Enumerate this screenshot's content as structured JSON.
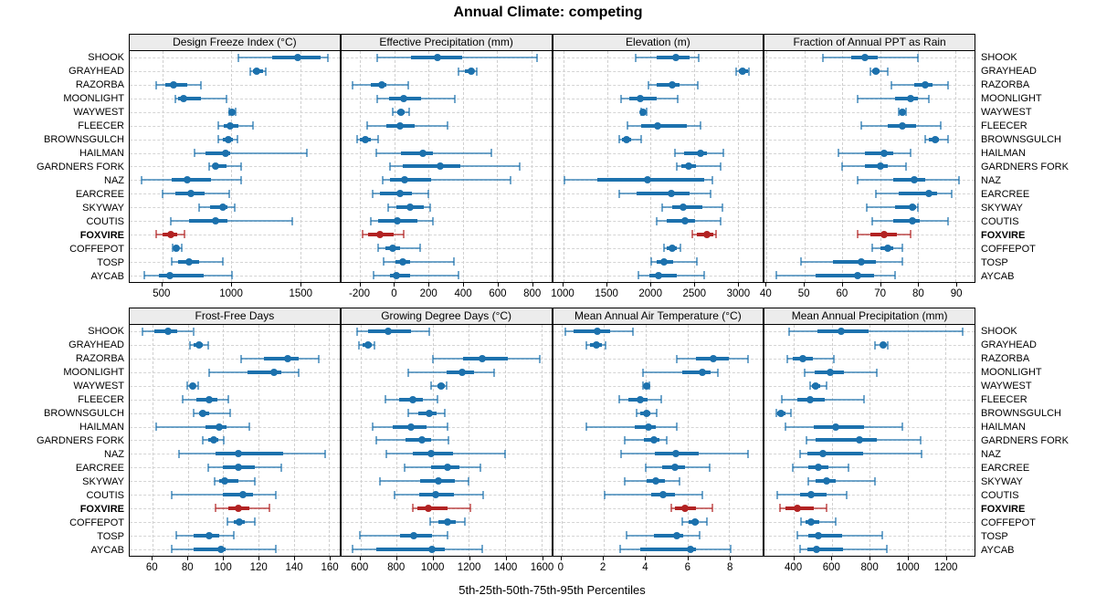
{
  "title": "Annual Climate: competing",
  "xlabel": "5th-25th-50th-75th-95th Percentiles",
  "colors": {
    "series": "#1c71ad",
    "highlight": "#b22222",
    "strip_bg": "#ececec",
    "grid": "#cfcfcf",
    "panel_border": "#000000"
  },
  "chart_data": {
    "type": "dotplot",
    "subtype": "percentile-range-trellis",
    "percentile_labels": [
      "5th",
      "25th",
      "50th",
      "75th",
      "95th"
    ],
    "legend_position": "none",
    "grid": "dashed",
    "highlight_site": "FOXVIRE",
    "sites": [
      "SHOOK",
      "GRAYHEAD",
      "RAZORBA",
      "MOONLIGHT",
      "WAYWEST",
      "FLEECER",
      "BROWNSGULCH",
      "HAILMAN",
      "GARDNERS FORK",
      "NAZ",
      "EARCREE",
      "SKYWAY",
      "COUTIS",
      "FOXVIRE",
      "COFFEPOT",
      "TOSP",
      "AYCAB"
    ],
    "layout": {
      "rows": 2,
      "cols": 4
    },
    "panels": [
      {
        "title": "Design Freeze Index (°C)",
        "row": 0,
        "col": 0,
        "xlim": [
          265,
          1785
        ],
        "ticks": [
          500,
          1000,
          1500
        ],
        "values": {
          "SHOOK": [
            1050,
            1300,
            1480,
            1650,
            1700
          ],
          "GRAYHEAD": [
            1140,
            1160,
            1185,
            1230,
            1250
          ],
          "RAZORBA": [
            460,
            525,
            585,
            680,
            780
          ],
          "MOONLIGHT": [
            595,
            615,
            655,
            780,
            965
          ],
          "WAYWEST": [
            985,
            995,
            1005,
            1025,
            1035
          ],
          "FLEECER": [
            905,
            945,
            995,
            1055,
            1155
          ],
          "BROWNSGULCH": [
            905,
            940,
            980,
            1015,
            1045
          ],
          "HAILMAN": [
            735,
            815,
            960,
            995,
            1550
          ],
          "GARDNERS FORK": [
            840,
            865,
            890,
            965,
            1070
          ],
          "NAZ": [
            350,
            570,
            680,
            855,
            1070
          ],
          "EARCREE": [
            500,
            595,
            710,
            810,
            985
          ],
          "SKYWAY": [
            765,
            845,
            940,
            970,
            1025
          ],
          "COUTIS": [
            560,
            695,
            890,
            975,
            1440
          ],
          "FOXVIRE": [
            460,
            500,
            560,
            610,
            665
          ],
          "COFFEPOT": [
            575,
            585,
            600,
            620,
            640
          ],
          "TOSP": [
            570,
            615,
            695,
            770,
            940
          ],
          "AYCAB": [
            370,
            480,
            555,
            800,
            1005
          ]
        }
      },
      {
        "title": "Effective Precipitation (mm)",
        "row": 0,
        "col": 1,
        "xlim": [
          -310,
          915
        ],
        "ticks": [
          -200,
          0,
          200,
          400,
          600,
          800
        ],
        "values": {
          "SHOOK": [
            -100,
            95,
            250,
            395,
            835
          ],
          "GRAYHEAD": [
            375,
            410,
            450,
            465,
            480
          ],
          "RAZORBA": [
            -245,
            -140,
            -75,
            -50,
            80
          ],
          "MOONLIGHT": [
            -100,
            -30,
            55,
            155,
            355
          ],
          "WAYWEST": [
            -10,
            18,
            40,
            60,
            85
          ],
          "FLEECER": [
            -160,
            -50,
            30,
            120,
            310
          ],
          "BROWNSGULCH": [
            -220,
            -200,
            -170,
            -140,
            -95
          ],
          "HAILMAN": [
            -105,
            40,
            165,
            225,
            565
          ],
          "GARDNERS FORK": [
            -25,
            48,
            265,
            385,
            730
          ],
          "NAZ": [
            -70,
            -25,
            60,
            215,
            680
          ],
          "EARCREE": [
            -130,
            -85,
            35,
            100,
            200
          ],
          "SKYWAY": [
            -35,
            10,
            90,
            170,
            210
          ],
          "COUTIS": [
            -140,
            -95,
            14,
            135,
            225
          ],
          "FOXVIRE": [
            -185,
            -155,
            -85,
            -5,
            55
          ],
          "COFFEPOT": [
            -95,
            -53,
            -10,
            30,
            150
          ],
          "TOSP": [
            -65,
            4,
            50,
            90,
            345
          ],
          "AYCAB": [
            -120,
            -28,
            12,
            90,
            375
          ]
        }
      },
      {
        "title": "Elevation (m)",
        "row": 0,
        "col": 2,
        "xlim": [
          880,
          3290
        ],
        "ticks": [
          1000,
          1500,
          2000,
          2500,
          3000
        ],
        "values": {
          "SHOOK": [
            1825,
            2070,
            2290,
            2450,
            2555
          ],
          "GRAYHEAD": [
            2985,
            3010,
            3055,
            3115,
            3130
          ],
          "RAZORBA": [
            1975,
            2070,
            2245,
            2330,
            2545
          ],
          "MOONLIGHT": [
            1660,
            1755,
            1880,
            2070,
            2315
          ],
          "WAYWEST": [
            1895,
            1900,
            1915,
            1940,
            1955
          ],
          "FLEECER": [
            1730,
            1895,
            2080,
            2420,
            2575
          ],
          "BROWNSGULCH": [
            1640,
            1670,
            1720,
            1780,
            1895
          ],
          "HAILMAN": [
            2280,
            2385,
            2570,
            2650,
            2835
          ],
          "GARDNERS FORK": [
            2305,
            2350,
            2440,
            2520,
            2800
          ],
          "NAZ": [
            1015,
            1385,
            1965,
            2615,
            2715
          ],
          "EARCREE": [
            1640,
            1835,
            2235,
            2450,
            2685
          ],
          "SKYWAY": [
            2130,
            2245,
            2370,
            2590,
            2825
          ],
          "COUTIS": [
            2070,
            2185,
            2395,
            2510,
            2810
          ],
          "FOXVIRE": [
            2475,
            2535,
            2650,
            2720,
            2750
          ],
          "COFFEPOT": [
            2150,
            2185,
            2245,
            2300,
            2340
          ],
          "TOSP": [
            2010,
            2070,
            2150,
            2255,
            2530
          ],
          "AYCAB": [
            1860,
            1990,
            2095,
            2305,
            2615
          ]
        }
      },
      {
        "title": "Fraction of Annual PPT as Rain",
        "row": 0,
        "col": 3,
        "xlim": [
          39.5,
          95
        ],
        "ticks": [
          40,
          50,
          60,
          70,
          80,
          90
        ],
        "values": {
          "SHOOK": [
            55,
            62.5,
            66,
            69.5,
            80
          ],
          "GRAYHEAD": [
            67.5,
            68,
            69,
            70,
            72
          ],
          "RAZORBA": [
            73,
            79,
            82,
            84,
            88
          ],
          "MOONLIGHT": [
            64,
            74,
            78,
            80,
            83
          ],
          "WAYWEST": [
            75,
            75.5,
            76,
            76.5,
            77
          ],
          "FLEECER": [
            65,
            72,
            76,
            79.5,
            86
          ],
          "BROWNSGULCH": [
            82,
            83,
            84.5,
            85.5,
            88
          ],
          "HAILMAN": [
            59,
            66,
            71,
            73.5,
            78
          ],
          "GARDNERS FORK": [
            60,
            66,
            70,
            72,
            77
          ],
          "NAZ": [
            64,
            73.5,
            79,
            82,
            91
          ],
          "EARCREE": [
            69,
            75,
            83,
            85,
            89
          ],
          "SKYWAY": [
            66.5,
            74,
            78.5,
            79.5,
            80
          ],
          "COUTIS": [
            68,
            73.5,
            78.5,
            80.5,
            88
          ],
          "FOXVIRE": [
            64,
            67.5,
            71,
            74.5,
            78
          ],
          "COFFEPOT": [
            68,
            70,
            72,
            73.5,
            76
          ],
          "TOSP": [
            49,
            57.5,
            65,
            69,
            76
          ],
          "AYCAB": [
            42.5,
            53,
            64,
            68.5,
            74
          ]
        }
      },
      {
        "title": "Frost-Free Days",
        "row": 1,
        "col": 0,
        "xlim": [
          47,
          166
        ],
        "ticks": [
          60,
          80,
          100,
          120,
          140,
          160
        ],
        "values": {
          "SHOOK": [
            54,
            61,
            69,
            74,
            83
          ],
          "GRAYHEAD": [
            81,
            83.5,
            86.5,
            88.5,
            91.5
          ],
          "RAZORBA": [
            110,
            123,
            136.5,
            143,
            154
          ],
          "MOONLIGHT": [
            92,
            114,
            129,
            133,
            143
          ],
          "WAYWEST": [
            79.5,
            81,
            82.5,
            84.5,
            86
          ],
          "FLEECER": [
            77,
            85,
            92,
            96.5,
            103
          ],
          "BROWNSGULCH": [
            83.5,
            86.5,
            88.5,
            92,
            104
          ],
          "HAILMAN": [
            62,
            90,
            98,
            102,
            115
          ],
          "GARDNERS FORK": [
            88.5,
            91.5,
            94.5,
            97,
            100.5
          ],
          "NAZ": [
            75,
            95.5,
            108.5,
            134,
            158
          ],
          "EARCREE": [
            91.5,
            100,
            108.5,
            118,
            133
          ],
          "SKYWAY": [
            95,
            98,
            101,
            108.5,
            118
          ],
          "COUTIS": [
            71,
            100,
            111,
            117,
            130
          ],
          "FOXVIRE": [
            95.5,
            103,
            108.5,
            115,
            126.5
          ],
          "COFFEPOT": [
            102.5,
            106,
            109,
            112.5,
            118
          ],
          "TOSP": [
            73.5,
            83.5,
            92,
            98,
            106
          ],
          "AYCAB": [
            71,
            83,
            99,
            101.5,
            130
          ]
        }
      },
      {
        "title": "Growing Degree Days (°C)",
        "row": 1,
        "col": 1,
        "xlim": [
          495,
          1655
        ],
        "ticks": [
          600,
          800,
          1000,
          1200,
          1400,
          1600
        ],
        "values": {
          "SHOOK": [
            580,
            645,
            755,
            880,
            980
          ],
          "GRAYHEAD": [
            590,
            610,
            645,
            665,
            680
          ],
          "RAZORBA": [
            1000,
            1170,
            1275,
            1415,
            1590
          ],
          "MOONLIGHT": [
            865,
            1075,
            1165,
            1230,
            1340
          ],
          "WAYWEST": [
            990,
            1025,
            1045,
            1065,
            1075
          ],
          "FLEECER": [
            740,
            815,
            890,
            945,
            1025
          ],
          "BROWNSGULCH": [
            865,
            920,
            980,
            1020,
            1065
          ],
          "HAILMAN": [
            670,
            780,
            880,
            965,
            1080
          ],
          "GARDNERS FORK": [
            690,
            850,
            940,
            990,
            1085
          ],
          "NAZ": [
            745,
            890,
            990,
            1110,
            1400
          ],
          "EARCREE": [
            845,
            990,
            1080,
            1150,
            1265
          ],
          "SKYWAY": [
            710,
            930,
            1030,
            1120,
            1200
          ],
          "COUTIS": [
            790,
            925,
            1015,
            1115,
            1280
          ],
          "FOXVIRE": [
            890,
            915,
            975,
            1080,
            1210
          ],
          "COFFEPOT": [
            985,
            1030,
            1080,
            1125,
            1180
          ],
          "TOSP": [
            595,
            820,
            895,
            995,
            1080
          ],
          "AYCAB": [
            555,
            690,
            995,
            1065,
            1275
          ]
        }
      },
      {
        "title": "Mean Annual Air Temperature (°C)",
        "row": 1,
        "col": 2,
        "xlim": [
          -0.4,
          9.6
        ],
        "ticks": [
          0,
          2,
          4,
          6,
          8
        ],
        "values": {
          "SHOOK": [
            0.2,
            0.6,
            1.7,
            2.3,
            3.4
          ],
          "GRAYHEAD": [
            1.2,
            1.35,
            1.65,
            1.95,
            2.1
          ],
          "RAZORBA": [
            5.5,
            6.4,
            7.25,
            8.0,
            8.9
          ],
          "MOONLIGHT": [
            3.9,
            5.75,
            6.7,
            7.1,
            7.45
          ],
          "WAYWEST": [
            3.9,
            3.95,
            4.05,
            4.1,
            4.2
          ],
          "FLEECER": [
            2.75,
            3.2,
            3.75,
            4.1,
            4.75
          ],
          "BROWNSGULCH": [
            3.6,
            3.75,
            4.05,
            4.25,
            4.55
          ],
          "HAILMAN": [
            1.2,
            3.5,
            4.15,
            4.5,
            5.5
          ],
          "GARDNERS FORK": [
            3.0,
            3.95,
            4.4,
            4.65,
            5.0
          ],
          "NAZ": [
            2.85,
            4.45,
            5.45,
            6.55,
            8.9
          ],
          "EARCREE": [
            4.0,
            4.8,
            5.4,
            5.9,
            7.05
          ],
          "SKYWAY": [
            3.0,
            4.05,
            4.5,
            4.95,
            5.65
          ],
          "COUTIS": [
            2.05,
            4.3,
            4.85,
            5.4,
            6.7
          ],
          "FOXVIRE": [
            5.25,
            5.4,
            5.9,
            6.4,
            7.2
          ],
          "COFFEPOT": [
            5.75,
            6.05,
            6.35,
            6.55,
            6.95
          ],
          "TOSP": [
            3.1,
            4.4,
            5.5,
            5.8,
            6.6
          ],
          "AYCAB": [
            2.8,
            3.75,
            6.15,
            6.4,
            8.05
          ]
        }
      },
      {
        "title": "Mean Annual Precipitation (mm)",
        "row": 1,
        "col": 3,
        "xlim": [
          245,
          1355
        ],
        "ticks": [
          400,
          600,
          800,
          1000,
          1200
        ],
        "values": {
          "SHOOK": [
            375,
            525,
            650,
            795,
            1290
          ],
          "GRAYHEAD": [
            830,
            855,
            870,
            885,
            895
          ],
          "RAZORBA": [
            365,
            395,
            445,
            500,
            610
          ],
          "MOONLIGHT": [
            455,
            510,
            590,
            665,
            840
          ],
          "WAYWEST": [
            485,
            495,
            515,
            540,
            570
          ],
          "FLEECER": [
            335,
            420,
            483,
            565,
            770
          ],
          "BROWNSGULCH": [
            305,
            312,
            330,
            355,
            385
          ],
          "HAILMAN": [
            355,
            505,
            620,
            770,
            975
          ],
          "GARDNERS FORK": [
            465,
            515,
            745,
            840,
            1070
          ],
          "NAZ": [
            430,
            470,
            555,
            765,
            1075
          ],
          "EARCREE": [
            395,
            475,
            530,
            580,
            690
          ],
          "SKYWAY": [
            475,
            515,
            570,
            620,
            830
          ],
          "COUTIS": [
            312,
            430,
            490,
            570,
            680
          ],
          "FOXVIRE": [
            325,
            355,
            420,
            505,
            570
          ],
          "COFFEPOT": [
            435,
            460,
            490,
            535,
            620
          ],
          "TOSP": [
            420,
            475,
            530,
            655,
            865
          ],
          "AYCAB": [
            430,
            470,
            520,
            660,
            890
          ]
        }
      }
    ]
  }
}
